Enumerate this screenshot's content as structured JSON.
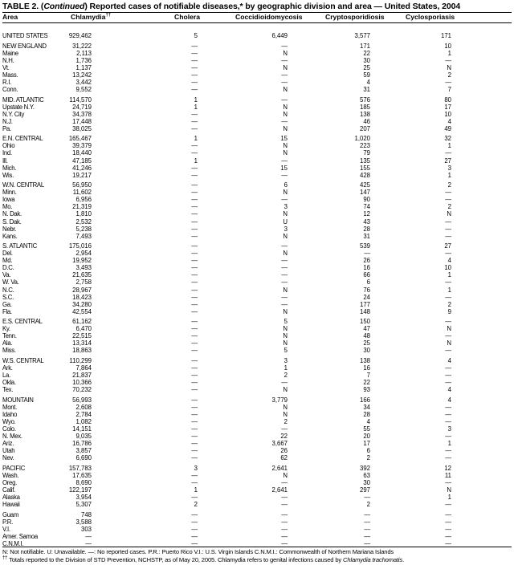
{
  "title": {
    "prefix": "TABLE 2. (",
    "italic": "Continued",
    "suffix": ") Reported cases of notifiable diseases,* by geographic division and area — United States, 2004"
  },
  "columns": [
    "Area",
    "Chlamydia",
    "Cholera",
    "Coccidioidomycosis",
    "Cryptosporidiosis",
    "Cyclosporiasis"
  ],
  "chlamydia_mark": "††",
  "groups": [
    [
      [
        "UNITED STATES",
        "929,462",
        "5",
        "6,449",
        "3,577",
        "171"
      ]
    ],
    [
      [
        "NEW ENGLAND",
        "31,222",
        "—",
        "—",
        "171",
        "10"
      ],
      [
        "Maine",
        "2,113",
        "—",
        "N",
        "22",
        "1"
      ],
      [
        "N.H.",
        "1,736",
        "—",
        "—",
        "30",
        "—"
      ],
      [
        "Vt.",
        "1,137",
        "—",
        "N",
        "25",
        "N"
      ],
      [
        "Mass.",
        "13,242",
        "—",
        "—",
        "59",
        "2"
      ],
      [
        "R.I.",
        "3,442",
        "—",
        "—",
        "4",
        "—"
      ],
      [
        "Conn.",
        "9,552",
        "—",
        "N",
        "31",
        "7"
      ]
    ],
    [
      [
        "MID. ATLANTIC",
        "114,570",
        "1",
        "—",
        "576",
        "80"
      ],
      [
        "Upstate N.Y.",
        "24,719",
        "1",
        "N",
        "185",
        "17"
      ],
      [
        "N.Y. City",
        "34,378",
        "—",
        "N",
        "138",
        "10"
      ],
      [
        "N.J.",
        "17,448",
        "—",
        "—",
        "46",
        "4"
      ],
      [
        "Pa.",
        "38,025",
        "—",
        "N",
        "207",
        "49"
      ]
    ],
    [
      [
        "E.N. CENTRAL",
        "165,467",
        "1",
        "15",
        "1,020",
        "32"
      ],
      [
        "Ohio",
        "39,379",
        "—",
        "N",
        "223",
        "1"
      ],
      [
        "Ind.",
        "18,440",
        "—",
        "N",
        "79",
        "—"
      ],
      [
        "Ill.",
        "47,185",
        "1",
        "—",
        "135",
        "27"
      ],
      [
        "Mich.",
        "41,246",
        "—",
        "15",
        "155",
        "3"
      ],
      [
        "Wis.",
        "19,217",
        "—",
        "—",
        "428",
        "1"
      ]
    ],
    [
      [
        "W.N. CENTRAL",
        "56,950",
        "—",
        "6",
        "425",
        "2"
      ],
      [
        "Minn.",
        "11,602",
        "—",
        "N",
        "147",
        "—"
      ],
      [
        "Iowa",
        "6,956",
        "—",
        "—",
        "90",
        "—"
      ],
      [
        "Mo.",
        "21,319",
        "—",
        "3",
        "74",
        "2"
      ],
      [
        "N. Dak.",
        "1,810",
        "—",
        "N",
        "12",
        "N"
      ],
      [
        "S. Dak.",
        "2,532",
        "—",
        "U",
        "43",
        "—"
      ],
      [
        "Nebr.",
        "5,238",
        "—",
        "3",
        "28",
        "—"
      ],
      [
        "Kans.",
        "7,493",
        "—",
        "N",
        "31",
        "—"
      ]
    ],
    [
      [
        "S. ATLANTIC",
        "175,016",
        "—",
        "—",
        "539",
        "27"
      ],
      [
        "Del.",
        "2,954",
        "—",
        "N",
        "—",
        "—"
      ],
      [
        "Md.",
        "19,952",
        "—",
        "—",
        "26",
        "4"
      ],
      [
        "D.C.",
        "3,493",
        "—",
        "—",
        "16",
        "10"
      ],
      [
        "Va.",
        "21,635",
        "—",
        "—",
        "66",
        "1"
      ],
      [
        "W. Va.",
        "2,758",
        "—",
        "—",
        "6",
        "—"
      ],
      [
        "N.C.",
        "28,967",
        "—",
        "N",
        "76",
        "1"
      ],
      [
        "S.C.",
        "18,423",
        "—",
        "—",
        "24",
        "—"
      ],
      [
        "Ga.",
        "34,280",
        "—",
        "—",
        "177",
        "2"
      ],
      [
        "Fla.",
        "42,554",
        "—",
        "N",
        "148",
        "9"
      ]
    ],
    [
      [
        "E.S. CENTRAL",
        "61,162",
        "—",
        "5",
        "150",
        "—"
      ],
      [
        "Ky.",
        "6,470",
        "—",
        "N",
        "47",
        "N"
      ],
      [
        "Tenn.",
        "22,515",
        "—",
        "N",
        "48",
        "—"
      ],
      [
        "Ala.",
        "13,314",
        "—",
        "N",
        "25",
        "N"
      ],
      [
        "Miss.",
        "18,863",
        "—",
        "5",
        "30",
        "—"
      ]
    ],
    [
      [
        "W.S. CENTRAL",
        "110,299",
        "—",
        "3",
        "138",
        "4"
      ],
      [
        "Ark.",
        "7,864",
        "—",
        "1",
        "16",
        "—"
      ],
      [
        "La.",
        "21,837",
        "—",
        "2",
        "7",
        "—"
      ],
      [
        "Okla.",
        "10,366",
        "—",
        "—",
        "22",
        "—"
      ],
      [
        "Tex.",
        "70,232",
        "—",
        "N",
        "93",
        "4"
      ]
    ],
    [
      [
        "MOUNTAIN",
        "56,993",
        "—",
        "3,779",
        "166",
        "4"
      ],
      [
        "Mont.",
        "2,608",
        "—",
        "N",
        "34",
        "—"
      ],
      [
        "Idaho",
        "2,784",
        "—",
        "N",
        "28",
        "—"
      ],
      [
        "Wyo.",
        "1,082",
        "—",
        "2",
        "4",
        "—"
      ],
      [
        "Colo.",
        "14,151",
        "—",
        "—",
        "55",
        "3"
      ],
      [
        "N. Mex.",
        "9,035",
        "—",
        "22",
        "20",
        "—"
      ],
      [
        "Ariz.",
        "16,786",
        "—",
        "3,667",
        "17",
        "1"
      ],
      [
        "Utah",
        "3,857",
        "—",
        "26",
        "6",
        "—"
      ],
      [
        "Nev.",
        "6,690",
        "—",
        "62",
        "2",
        "—"
      ]
    ],
    [
      [
        "PACIFIC",
        "157,783",
        "3",
        "2,641",
        "392",
        "12"
      ],
      [
        "Wash.",
        "17,635",
        "—",
        "N",
        "63",
        "11"
      ],
      [
        "Oreg.",
        "8,690",
        "—",
        "—",
        "30",
        "—"
      ],
      [
        "Calif.",
        "122,197",
        "1",
        "2,641",
        "297",
        "N"
      ],
      [
        "Alaska",
        "3,954",
        "—",
        "—",
        "—",
        "1"
      ],
      [
        "Hawaii",
        "5,307",
        "2",
        "—",
        "2",
        "—"
      ]
    ],
    [
      [
        "Guam",
        "748",
        "—",
        "—",
        "—",
        "—"
      ],
      [
        "P.R.",
        "3,588",
        "—",
        "—",
        "—",
        "—"
      ],
      [
        "V.I.",
        "303",
        "—",
        "—",
        "—",
        "—"
      ],
      [
        "Amer. Samoa",
        "—",
        "—",
        "—",
        "—",
        "—"
      ],
      [
        "C.N.M.I.",
        "—",
        "—",
        "—",
        "—",
        "—"
      ]
    ]
  ],
  "footnotes": {
    "legend": "N: Not notifiable.    U: Unavailable.    —: No reported cases.    P.R.: Puerto Rico    V.I.: U.S. Virgin Islands    C.N.M.I.: Commonwealth of Northern Mariana Islands",
    "dagger_mark": "††",
    "dagger_text": " Totals reported to the Division of STD Prevention, NCHSTP, as of May 20, 2005. Chlamydia refers to genital infections caused by ",
    "dagger_italic": "Chlamydia trachomatis",
    "dagger_end": "."
  }
}
